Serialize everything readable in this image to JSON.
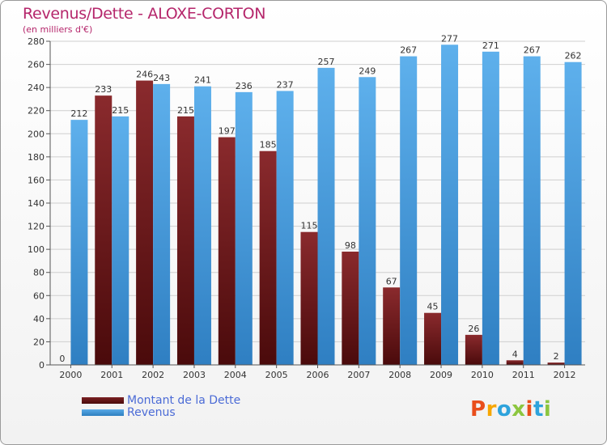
{
  "header": {
    "title": "Revenus/Dette - ALOXE-CORTON",
    "subtitle": "(en milliers d'€)"
  },
  "colors": {
    "dette": "#7a1f22",
    "dette_dark": "#4a0c0c",
    "revenus": "#5aaae8",
    "revenus_dark": "#2d7fc0",
    "title": "#b5266b",
    "legend": "#4b6bd6"
  },
  "chart_data": {
    "type": "bar",
    "title": "Revenus/Dette - ALOXE-CORTON",
    "ylabel": "(en milliers d'€)",
    "xlabel": "",
    "ylim": [
      0,
      280
    ],
    "yticks": [
      0,
      20,
      40,
      60,
      80,
      100,
      120,
      140,
      160,
      180,
      200,
      220,
      240,
      260,
      280
    ],
    "grid": true,
    "categories": [
      "2000",
      "2001",
      "2002",
      "2003",
      "2004",
      "2005",
      "2006",
      "2007",
      "2008",
      "2009",
      "2010",
      "2011",
      "2012"
    ],
    "series": [
      {
        "name": "Montant de la Dette",
        "values": [
          0,
          233,
          246,
          215,
          197,
          185,
          115,
          98,
          67,
          45,
          26,
          4,
          2
        ]
      },
      {
        "name": "Revenus",
        "values": [
          212,
          215,
          243,
          241,
          236,
          237,
          257,
          249,
          267,
          277,
          271,
          267,
          262
        ]
      }
    ],
    "legend": "bottom-left"
  },
  "legend": {
    "items": [
      "Montant de la Dette",
      "Revenus"
    ]
  },
  "logo": {
    "letters": [
      "P",
      "r",
      "o",
      "x",
      "i",
      "t",
      "i"
    ],
    "colors": [
      "#e94e1b",
      "#f7a600",
      "#2ea3dc",
      "#8cc63f",
      "#e94e1b",
      "#2ea3dc",
      "#8cc63f"
    ]
  }
}
